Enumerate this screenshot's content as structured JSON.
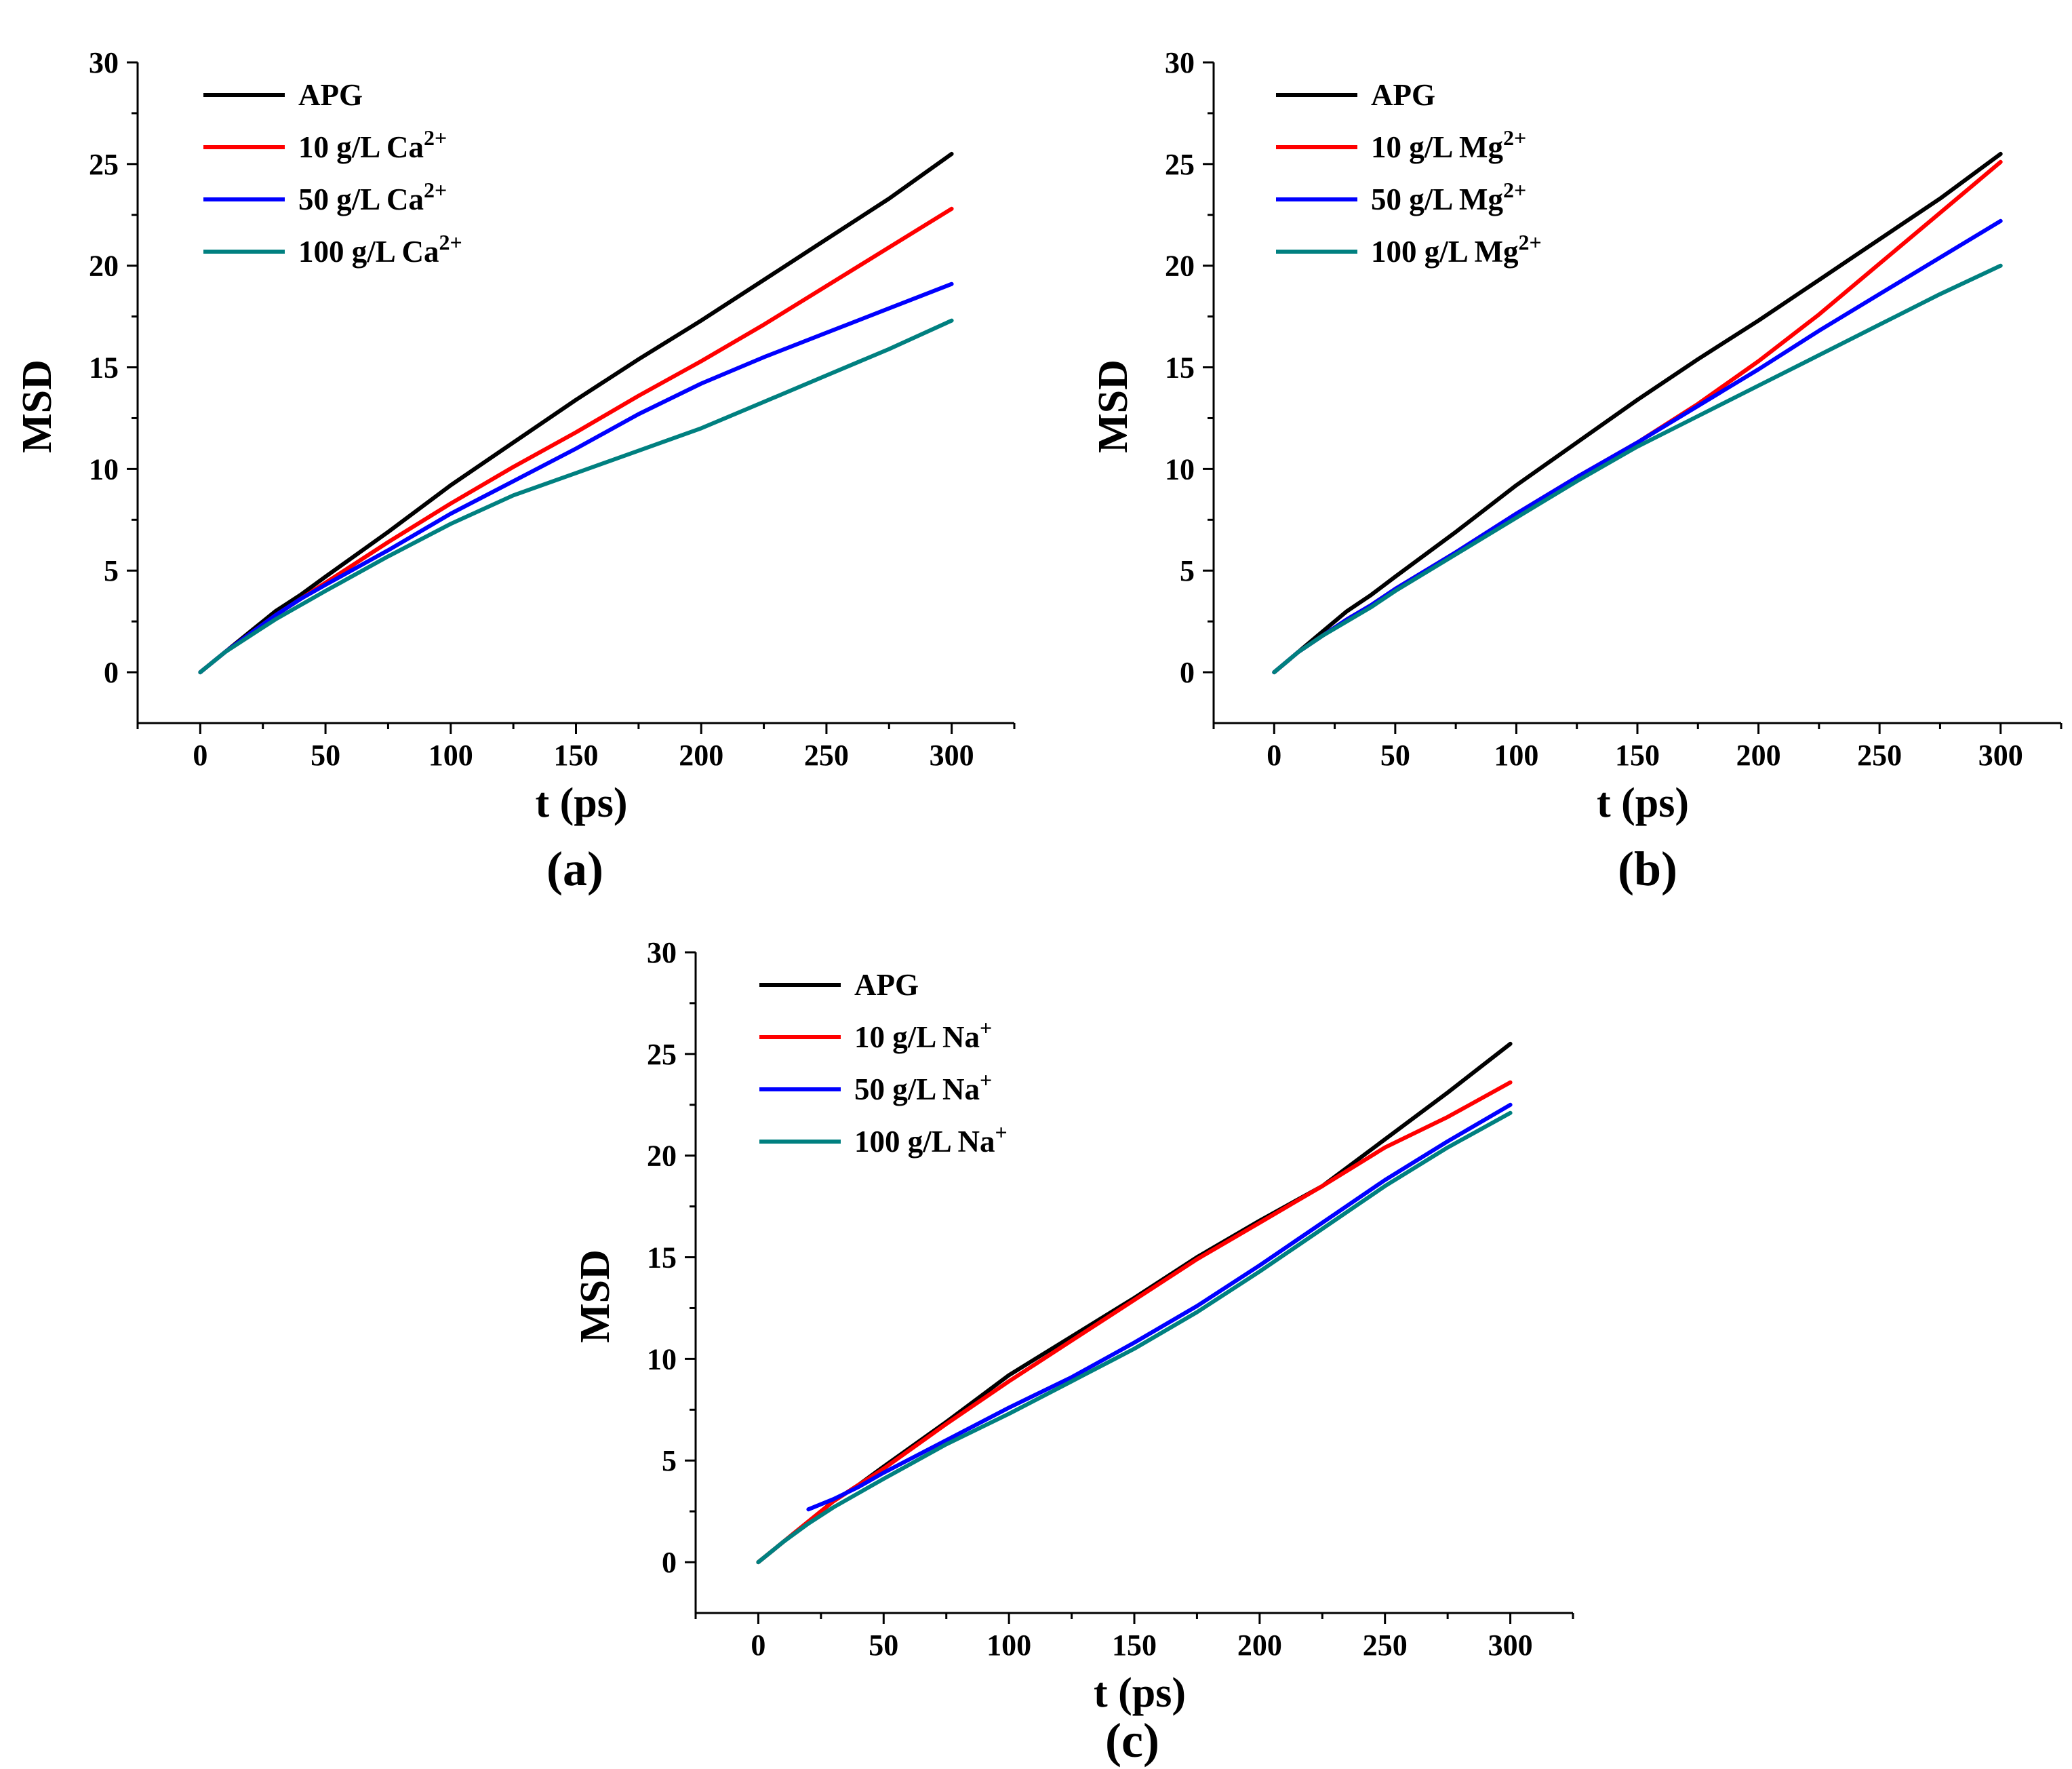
{
  "chart_data": [
    {
      "type": "line",
      "panel_label": "(a)",
      "xlabel": "t (ps)",
      "ylabel": "MSD",
      "xlim": [
        -25,
        325
      ],
      "ylim": [
        -2.5,
        30
      ],
      "xticks": [
        0,
        50,
        100,
        150,
        200,
        250,
        300
      ],
      "yticks": [
        0,
        5,
        10,
        15,
        20,
        25,
        30
      ],
      "legend_position": "top-left",
      "series": [
        {
          "name": "APG",
          "base": "APG",
          "sup": "",
          "color": "#000000",
          "x": [
            0,
            10,
            20,
            30,
            40,
            50,
            75,
            100,
            125,
            150,
            175,
            200,
            225,
            250,
            275,
            300
          ],
          "y": [
            0,
            1.0,
            2.0,
            3.0,
            3.8,
            4.7,
            6.9,
            9.2,
            11.3,
            13.4,
            15.4,
            17.3,
            19.3,
            21.3,
            23.3,
            25.5
          ]
        },
        {
          "name": "10 g/L Ca2+",
          "base": "10 g/L Ca",
          "sup": "2+",
          "color": "#ff0000",
          "x": [
            0,
            10,
            20,
            30,
            40,
            50,
            75,
            100,
            125,
            150,
            175,
            200,
            225,
            250,
            275,
            300
          ],
          "y": [
            0,
            1.0,
            1.9,
            2.8,
            3.6,
            4.4,
            6.4,
            8.3,
            10.1,
            11.8,
            13.6,
            15.3,
            17.1,
            19.0,
            20.9,
            22.8
          ]
        },
        {
          "name": "50 g/L Ca2+",
          "base": "50 g/L Ca",
          "sup": "2+",
          "color": "#0000ff",
          "x": [
            0,
            10,
            20,
            30,
            40,
            50,
            75,
            100,
            125,
            150,
            175,
            200,
            225,
            250,
            275,
            300
          ],
          "y": [
            0,
            1.0,
            1.9,
            2.8,
            3.6,
            4.3,
            6.0,
            7.8,
            9.4,
            11.0,
            12.7,
            14.2,
            15.5,
            16.7,
            17.9,
            19.1
          ]
        },
        {
          "name": "100 g/L Ca2+",
          "base": "100 g/L Ca",
          "sup": "2+",
          "color": "#008080",
          "x": [
            0,
            10,
            20,
            30,
            40,
            50,
            75,
            100,
            125,
            150,
            175,
            200,
            225,
            250,
            275,
            300
          ],
          "y": [
            0,
            1.0,
            1.8,
            2.6,
            3.3,
            4.0,
            5.7,
            7.3,
            8.7,
            9.8,
            10.9,
            12.0,
            13.3,
            14.6,
            15.9,
            17.3
          ]
        }
      ]
    },
    {
      "type": "line",
      "panel_label": "(b)",
      "xlabel": "t (ps)",
      "ylabel": "MSD",
      "xlim": [
        -25,
        325
      ],
      "ylim": [
        -2.5,
        30
      ],
      "xticks": [
        0,
        50,
        100,
        150,
        200,
        250,
        300
      ],
      "yticks": [
        0,
        5,
        10,
        15,
        20,
        25,
        30
      ],
      "legend_position": "top-left",
      "series": [
        {
          "name": "APG",
          "base": "APG",
          "sup": "",
          "color": "#000000",
          "x": [
            0,
            10,
            20,
            30,
            40,
            50,
            75,
            100,
            125,
            150,
            175,
            200,
            225,
            250,
            275,
            300
          ],
          "y": [
            0,
            1.0,
            2.0,
            3.0,
            3.8,
            4.7,
            6.9,
            9.2,
            11.3,
            13.4,
            15.4,
            17.3,
            19.3,
            21.3,
            23.3,
            25.5
          ]
        },
        {
          "name": "10 g/L Mg2+",
          "base": "10 g/L Mg",
          "sup": "2+",
          "color": "#ff0000",
          "x": [
            0,
            10,
            20,
            30,
            40,
            50,
            75,
            100,
            125,
            150,
            175,
            200,
            225,
            250,
            275,
            300
          ],
          "y": [
            0,
            1.0,
            1.8,
            2.6,
            3.3,
            4.1,
            5.9,
            7.8,
            9.6,
            11.3,
            13.2,
            15.3,
            17.6,
            20.1,
            22.6,
            25.1
          ]
        },
        {
          "name": "50 g/L Mg2+",
          "base": "50 g/L Mg",
          "sup": "2+",
          "color": "#0000ff",
          "x": [
            0,
            10,
            20,
            30,
            40,
            50,
            75,
            100,
            125,
            150,
            175,
            200,
            225,
            250,
            275,
            300
          ],
          "y": [
            0,
            1.0,
            1.8,
            2.6,
            3.3,
            4.1,
            5.9,
            7.8,
            9.6,
            11.3,
            13.1,
            14.9,
            16.8,
            18.6,
            20.4,
            22.2
          ]
        },
        {
          "name": "100 g/L Mg2+",
          "base": "100 g/L Mg",
          "sup": "2+",
          "color": "#008080",
          "x": [
            0,
            10,
            20,
            30,
            40,
            50,
            75,
            100,
            125,
            150,
            175,
            200,
            225,
            250,
            275,
            300
          ],
          "y": [
            0,
            1.0,
            1.8,
            2.5,
            3.2,
            4.0,
            5.8,
            7.6,
            9.4,
            11.1,
            12.6,
            14.1,
            15.6,
            17.1,
            18.6,
            20.0
          ]
        }
      ]
    },
    {
      "type": "line",
      "panel_label": "(c)",
      "xlabel": "t (ps)",
      "ylabel": "MSD",
      "xlim": [
        -25,
        325
      ],
      "ylim": [
        -2.5,
        30
      ],
      "xticks": [
        0,
        50,
        100,
        150,
        200,
        250,
        300
      ],
      "yticks": [
        0,
        5,
        10,
        15,
        20,
        25,
        30
      ],
      "legend_position": "top-left",
      "series": [
        {
          "name": "APG",
          "base": "APG",
          "sup": "",
          "color": "#000000",
          "x": [
            0,
            10,
            20,
            30,
            40,
            50,
            75,
            100,
            125,
            150,
            175,
            200,
            225,
            250,
            275,
            300
          ],
          "y": [
            0,
            1.0,
            2.0,
            3.0,
            3.8,
            4.7,
            6.9,
            9.2,
            11.1,
            13.0,
            15.0,
            16.8,
            18.5,
            20.8,
            23.1,
            25.5
          ]
        },
        {
          "name": "10 g/L Na+",
          "base": "10 g/L Na",
          "sup": "+",
          "color": "#ff0000",
          "x": [
            0,
            10,
            20,
            30,
            40,
            50,
            75,
            100,
            125,
            150,
            175,
            200,
            225,
            250,
            275,
            300
          ],
          "y": [
            0,
            1.0,
            2.0,
            3.0,
            3.8,
            4.6,
            6.8,
            8.9,
            10.9,
            12.9,
            14.9,
            16.7,
            18.5,
            20.4,
            21.9,
            23.6
          ]
        },
        {
          "name": "50 g/L Na+",
          "base": "50 g/L Na",
          "sup": "+",
          "color": "#0000ff",
          "x": [
            20,
            30,
            40,
            50,
            75,
            100,
            125,
            150,
            175,
            200,
            225,
            250,
            275,
            300
          ],
          "y": [
            2.6,
            3.1,
            3.7,
            4.4,
            6.0,
            7.6,
            9.1,
            10.8,
            12.6,
            14.6,
            16.7,
            18.8,
            20.7,
            22.5
          ]
        },
        {
          "name": "100 g/L Na+",
          "base": "100 g/L Na",
          "sup": "+",
          "color": "#008080",
          "x": [
            0,
            10,
            20,
            30,
            40,
            50,
            75,
            100,
            125,
            150,
            175,
            200,
            225,
            250,
            275,
            300
          ],
          "y": [
            0,
            1.0,
            1.9,
            2.7,
            3.4,
            4.1,
            5.8,
            7.3,
            8.9,
            10.5,
            12.3,
            14.3,
            16.4,
            18.5,
            20.4,
            22.1
          ]
        }
      ]
    }
  ]
}
